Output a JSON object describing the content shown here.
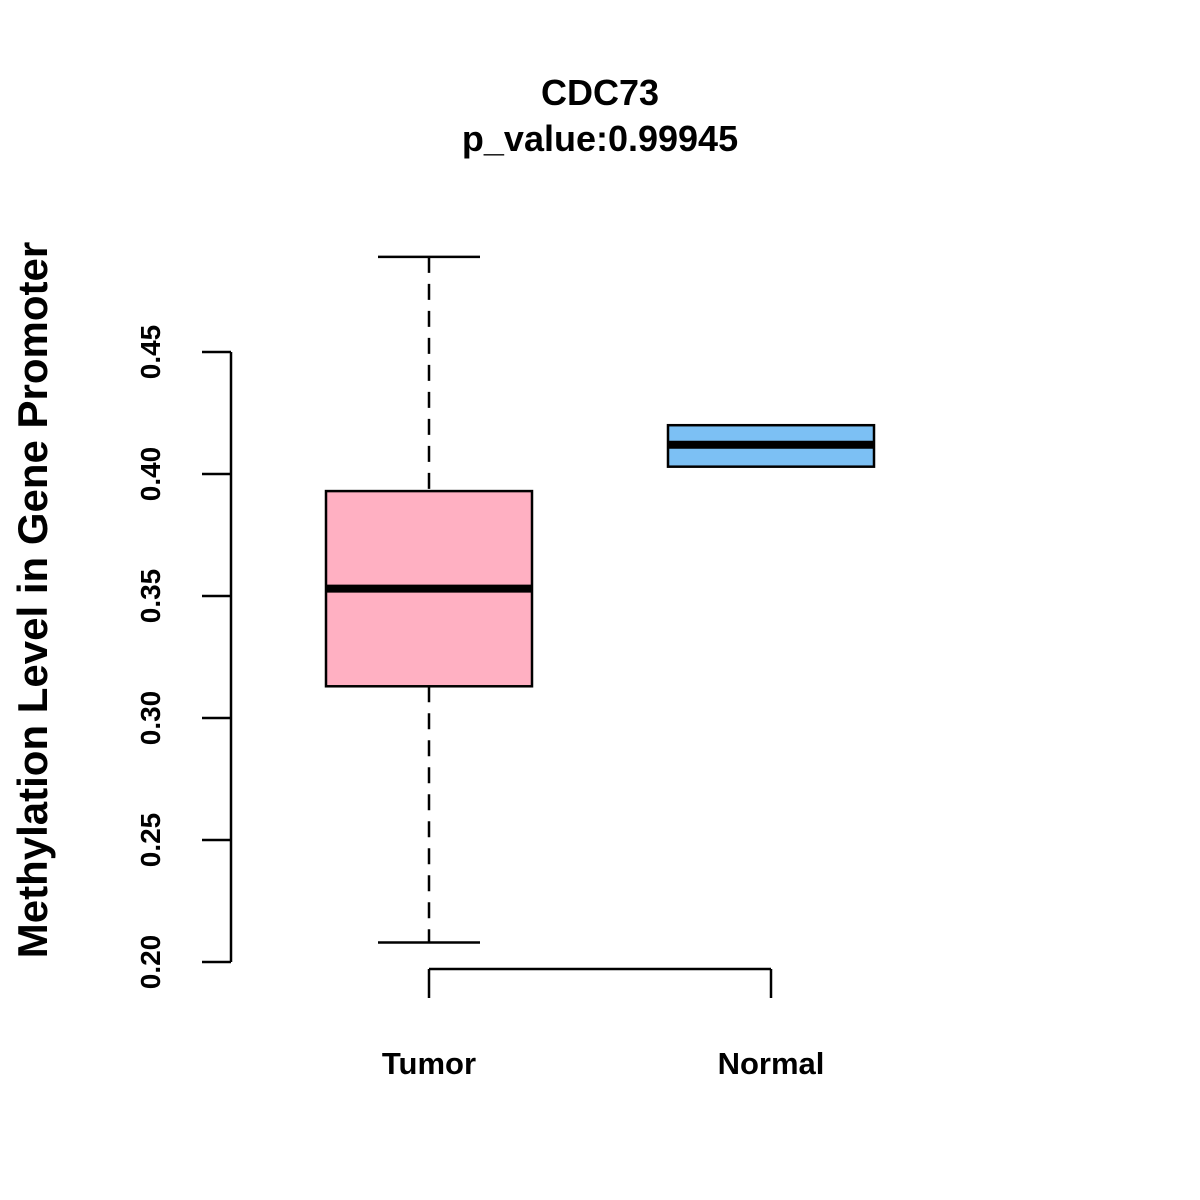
{
  "chart_data": {
    "type": "box",
    "title": "CDC73",
    "subtitle": "p_value:0.99945",
    "xlabel": "",
    "ylabel": "Methylation Level in Gene Promoter",
    "ylim": [
      0.2,
      0.45
    ],
    "yticks": [
      "0.20",
      "0.25",
      "0.30",
      "0.35",
      "0.40",
      "0.45"
    ],
    "categories": [
      "Tumor",
      "Normal"
    ],
    "series": [
      {
        "name": "Tumor",
        "color": "#FFB0C2",
        "whisker_low": 0.208,
        "q1": 0.313,
        "median": 0.353,
        "q3": 0.393,
        "whisker_high": 0.489
      },
      {
        "name": "Normal",
        "color": "#7CC0F4",
        "whisker_low": 0.403,
        "q1": 0.403,
        "median": 0.412,
        "q3": 0.42,
        "whisker_high": 0.42
      }
    ],
    "grid": false,
    "legend": "none"
  }
}
